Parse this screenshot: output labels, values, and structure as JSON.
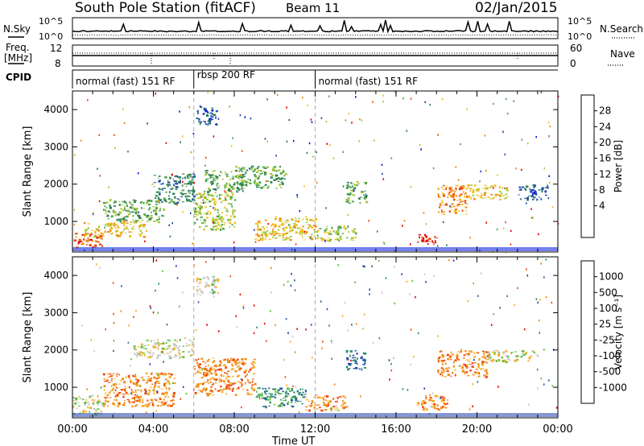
{
  "header": {
    "title": "South Pole Station (fitACF)",
    "beam": "Beam 11",
    "date": "02/Jan/2015"
  },
  "top_panels": {
    "nsky_label": "N.Sky",
    "nsearch_label": "N.Search",
    "nsky_ticks": [
      "10^5",
      "10^0"
    ],
    "nsearch_ticks": [
      "10^5",
      "10^0"
    ],
    "freq_label_line1": "Freq.",
    "freq_label_line2": "[MHz]",
    "freq_ticks": [
      "12",
      "8"
    ],
    "nave_label": "Nave",
    "nave_ticks": [
      "60",
      "0"
    ],
    "cpid_label": "CPID",
    "cpid_segments": [
      {
        "label": "normal (fast) 151 RF",
        "start_hour": 0,
        "end_hour": 6
      },
      {
        "label": "rbsp 200 RF",
        "start_hour": 6,
        "end_hour": 12
      },
      {
        "label": "normal (fast) 151 RF",
        "start_hour": 12,
        "end_hour": 24
      }
    ]
  },
  "chart_data": [
    {
      "type": "heatmap",
      "name": "power",
      "ylabel": "Slant Range [km]",
      "y_ticks": [
        1000,
        2000,
        3000,
        4000
      ],
      "ylim": [
        180,
        4500
      ],
      "xlim": [
        0,
        24
      ],
      "colorbar_label": "Power [dB]",
      "colorbar_ticks": [
        "28",
        "24",
        "20",
        "16",
        "12",
        "8",
        "4"
      ],
      "colorbar_colors": [
        "#0018e0",
        "#1f4fa8",
        "#2e7d55",
        "#4aa64a",
        "#a8c83a",
        "#f2c020",
        "#f08a10",
        "#e84a10",
        "#e00000"
      ],
      "echo_regions": [
        {
          "t": [
            0.0,
            1.5
          ],
          "r": [
            300,
            700
          ],
          "level": 7
        },
        {
          "t": [
            0.5,
            3.5
          ],
          "r": [
            600,
            1000
          ],
          "level": 5
        },
        {
          "t": [
            1.5,
            4.5
          ],
          "r": [
            1000,
            1600
          ],
          "level": 3
        },
        {
          "t": [
            4.0,
            6.0
          ],
          "r": [
            1500,
            2300
          ],
          "level": 2
        },
        {
          "t": [
            6.0,
            8.0
          ],
          "r": [
            800,
            1800
          ],
          "level": 4
        },
        {
          "t": [
            6.5,
            8.5
          ],
          "r": [
            1800,
            2400
          ],
          "level": 3
        },
        {
          "t": [
            8.0,
            10.5
          ],
          "r": [
            1900,
            2500
          ],
          "level": 3
        },
        {
          "t": [
            9.0,
            12.0
          ],
          "r": [
            500,
            1100
          ],
          "level": 5
        },
        {
          "t": [
            12.0,
            14.0
          ],
          "r": [
            500,
            900
          ],
          "level": 4
        },
        {
          "t": [
            13.5,
            14.5
          ],
          "r": [
            1500,
            2100
          ],
          "level": 3
        },
        {
          "t": [
            17.0,
            18.0
          ],
          "r": [
            400,
            700
          ],
          "level": 8
        },
        {
          "t": [
            18.0,
            19.5
          ],
          "r": [
            1200,
            2000
          ],
          "level": 6
        },
        {
          "t": [
            19.5,
            21.5
          ],
          "r": [
            1600,
            2000
          ],
          "level": 5
        },
        {
          "t": [
            22.0,
            23.5
          ],
          "r": [
            1600,
            2000
          ],
          "level": 1
        },
        {
          "t": [
            6.1,
            7.1
          ],
          "r": [
            3600,
            4100
          ],
          "level": 1
        }
      ]
    },
    {
      "type": "heatmap",
      "name": "velocity",
      "ylabel": "Slant Range [km]",
      "xlabel": "Time UT",
      "x_ticks": [
        "00:00",
        "04:00",
        "08:00",
        "12:00",
        "16:00",
        "20:00",
        "00:00"
      ],
      "y_ticks": [
        1000,
        2000,
        3000,
        4000
      ],
      "ylim": [
        180,
        4500
      ],
      "xlim": [
        0,
        24
      ],
      "colorbar_label": "Velocity [m s⁻¹]",
      "colorbar_ticks": [
        "1000",
        "500",
        "100",
        "25",
        "-25",
        "-100",
        "-500",
        "-1000"
      ],
      "colorbar_colors": [
        "#1f3fb0",
        "#2f5fa0",
        "#2e8a6a",
        "#5ec03a",
        "#c8c8c8",
        "#f5b030",
        "#f08a10",
        "#f04a10",
        "#e00000"
      ],
      "echo_regions": [
        {
          "t": [
            0.0,
            1.5
          ],
          "r": [
            300,
            800
          ],
          "level": 4
        },
        {
          "t": [
            1.5,
            5.0
          ],
          "r": [
            500,
            1400
          ],
          "level": 6
        },
        {
          "t": [
            3.0,
            6.0
          ],
          "r": [
            1800,
            2300
          ],
          "level": 4
        },
        {
          "t": [
            6.0,
            9.0
          ],
          "r": [
            800,
            1800
          ],
          "level": 6
        },
        {
          "t": [
            9.0,
            11.5
          ],
          "r": [
            500,
            1000
          ],
          "level": 2
        },
        {
          "t": [
            11.5,
            13.5
          ],
          "r": [
            400,
            800
          ],
          "level": 6
        },
        {
          "t": [
            13.5,
            14.5
          ],
          "r": [
            1500,
            2000
          ],
          "level": 1
        },
        {
          "t": [
            17.0,
            18.5
          ],
          "r": [
            400,
            800
          ],
          "level": 6
        },
        {
          "t": [
            18.0,
            20.5
          ],
          "r": [
            1300,
            2000
          ],
          "level": 6
        },
        {
          "t": [
            20.5,
            23.0
          ],
          "r": [
            1700,
            2000
          ],
          "level": 4
        },
        {
          "t": [
            6.1,
            7.2
          ],
          "r": [
            3500,
            4000
          ],
          "level": 4
        }
      ]
    }
  ]
}
